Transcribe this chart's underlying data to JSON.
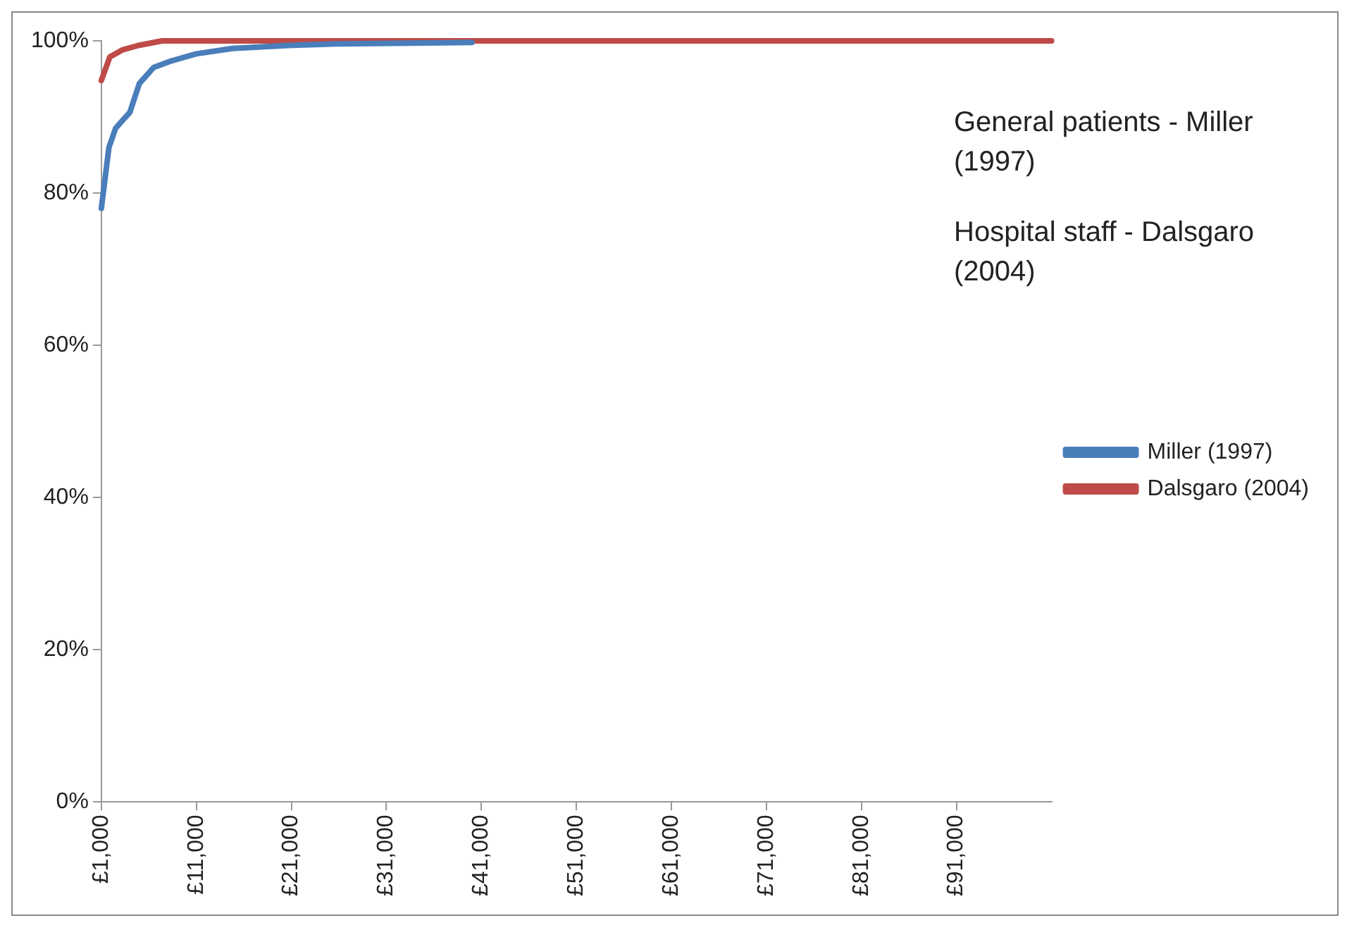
{
  "chart_data": {
    "type": "line",
    "xlim": [
      1000,
      101000
    ],
    "xticks": [
      {
        "value": 1000,
        "label": "£1,000"
      },
      {
        "value": 11000,
        "label": "£11,000"
      },
      {
        "value": 21000,
        "label": "£21,000"
      },
      {
        "value": 31000,
        "label": "£31,000"
      },
      {
        "value": 41000,
        "label": "£41,000"
      },
      {
        "value": 51000,
        "label": "£51,000"
      },
      {
        "value": 61000,
        "label": "£61,000"
      },
      {
        "value": 71000,
        "label": "£71,000"
      },
      {
        "value": 81000,
        "label": "£81,000"
      },
      {
        "value": 91000,
        "label": "£91,000"
      }
    ],
    "ylim": [
      0,
      100
    ],
    "yticks": [
      {
        "value": 0,
        "label": "0%"
      },
      {
        "value": 20,
        "label": "20%"
      },
      {
        "value": 40,
        "label": "40%"
      },
      {
        "value": 60,
        "label": "60%"
      },
      {
        "value": 80,
        "label": "80%"
      },
      {
        "value": 100,
        "label": "100%"
      }
    ],
    "series": [
      {
        "name": "Miller (1997)",
        "color": "#4a7ebb",
        "x": [
          1000,
          1800,
          2500,
          3200,
          4000,
          5000,
          6500,
          8200,
          11000,
          14800,
          20700,
          25800,
          40000
        ],
        "values": [
          78,
          86,
          88.5,
          89.5,
          90.6,
          94.4,
          96.5,
          97.3,
          98.3,
          99,
          99.4,
          99.6,
          99.8
        ]
      },
      {
        "name": "Dalsgaro (2004)",
        "color": "#be4b48",
        "x": [
          1000,
          1900,
          3200,
          4900,
          7400,
          101000
        ],
        "values": [
          94.8,
          97.9,
          98.8,
          99.4,
          100,
          100
        ]
      }
    ],
    "legend": "right",
    "grid": false,
    "marker": "none",
    "line_style": "solid",
    "annotations": [
      "General patients - Miller (1997)",
      "Hospital staff - Dalsgaro (2004)"
    ]
  }
}
